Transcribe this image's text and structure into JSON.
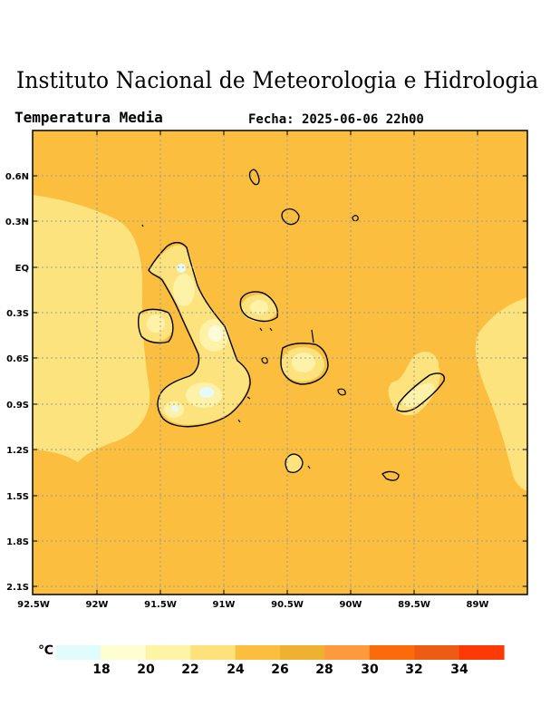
{
  "header": {
    "institution": "Instituto Nacional de Meteorologia e Hidrologia",
    "variable": "Temperatura Media",
    "date_label": "Fecha: 2025-06-06 22h00"
  },
  "map": {
    "lat_ticks": [
      "0.6N",
      "0.3N",
      "EQ",
      "0.3S",
      "0.6S",
      "0.9S",
      "1.2S",
      "1.5S",
      "1.8S",
      "2.1S"
    ],
    "lon_ticks": [
      "92.5W",
      "92W",
      "91.5W",
      "91W",
      "90.5W",
      "90W",
      "89.5W",
      "89W"
    ],
    "extent": {
      "lon_min": -92.5,
      "lon_max": -88.6,
      "lat_min": -2.1,
      "lat_max": 0.9
    },
    "background_color": "#fbbe3e",
    "cool_region_color": "#fde37e",
    "warm_land_color": "#fdf2a8",
    "peak_color": "#fefbd8",
    "coldest_color": "#e4fbfc"
  },
  "colorbar": {
    "unit": "℃",
    "colors": [
      "#e1fcfd",
      "#fefed0",
      "#fdf4a6",
      "#fde17a",
      "#fbbe3e",
      "#eeb230",
      "#fc9a3d",
      "#fb6b0b",
      "#ee5c14",
      "#fd3a05"
    ],
    "labels": [
      "18",
      "20",
      "22",
      "24",
      "26",
      "28",
      "30",
      "32",
      "34"
    ]
  }
}
